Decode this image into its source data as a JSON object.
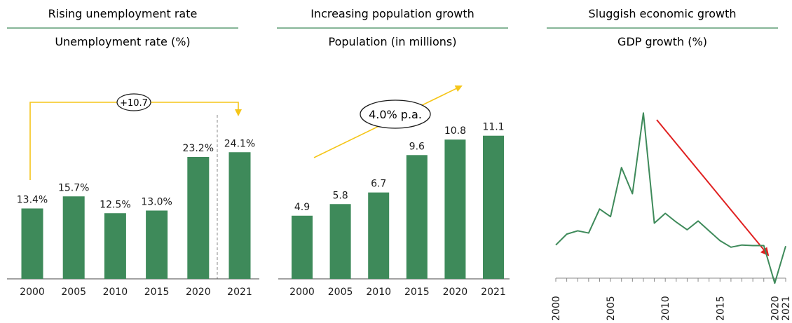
{
  "panels": [
    {
      "section_title": "Rising unemployment rate",
      "chart_title": "Unemployment rate (%)",
      "annotation": "+10.7"
    },
    {
      "section_title": "Increasing population growth",
      "chart_title": "Population (in millions)",
      "annotation": "4.0% p.a."
    },
    {
      "section_title": "Sluggish economic growth",
      "chart_title": "GDP growth (%)"
    }
  ],
  "colors": {
    "bar": "#3e8a5a",
    "line": "#3e8a5a",
    "rule": "#3e8a5a",
    "accent_arrow": "#f5c518",
    "trend_arrow": "#e02020",
    "text": "#1a1a1a"
  },
  "chart_data": [
    {
      "type": "bar",
      "title": "Unemployment rate (%)",
      "categories": [
        "2000",
        "2005",
        "2010",
        "2015",
        "2020",
        "2021"
      ],
      "values": [
        13.4,
        15.7,
        12.5,
        13.0,
        23.2,
        24.1
      ],
      "labels": [
        "13.4%",
        "15.7%",
        "12.5%",
        "13.0%",
        "23.2%",
        "24.1%"
      ],
      "ylim": [
        0,
        40
      ]
    },
    {
      "type": "bar",
      "title": "Population (in millions)",
      "categories": [
        "2000",
        "2005",
        "2010",
        "2015",
        "2020",
        "2021"
      ],
      "values": [
        4.9,
        5.8,
        6.7,
        9.6,
        10.8,
        11.1
      ],
      "labels": [
        "4.9",
        "5.8",
        "6.7",
        "9.6",
        "10.8",
        "11.1"
      ],
      "ylim": [
        0,
        16.3
      ]
    },
    {
      "type": "line",
      "title": "GDP growth (%)",
      "x": [
        2000,
        2001,
        2002,
        2003,
        2004,
        2005,
        2006,
        2007,
        2008,
        2009,
        2010,
        2011,
        2012,
        2013,
        2014,
        2015,
        2016,
        2017,
        2018,
        2019,
        2020,
        2021
      ],
      "values": [
        3.0,
        4.0,
        4.3,
        4.1,
        6.3,
        5.6,
        10.1,
        7.7,
        15.1,
        5.0,
        5.9,
        5.1,
        4.4,
        5.2,
        4.3,
        3.4,
        2.8,
        3.0,
        2.95,
        2.95,
        -0.5,
        2.9
      ],
      "xticks": [
        "2000",
        "2005",
        "2010",
        "2015",
        "2020",
        "2021"
      ],
      "ylim": [
        -1,
        15.5
      ]
    }
  ]
}
